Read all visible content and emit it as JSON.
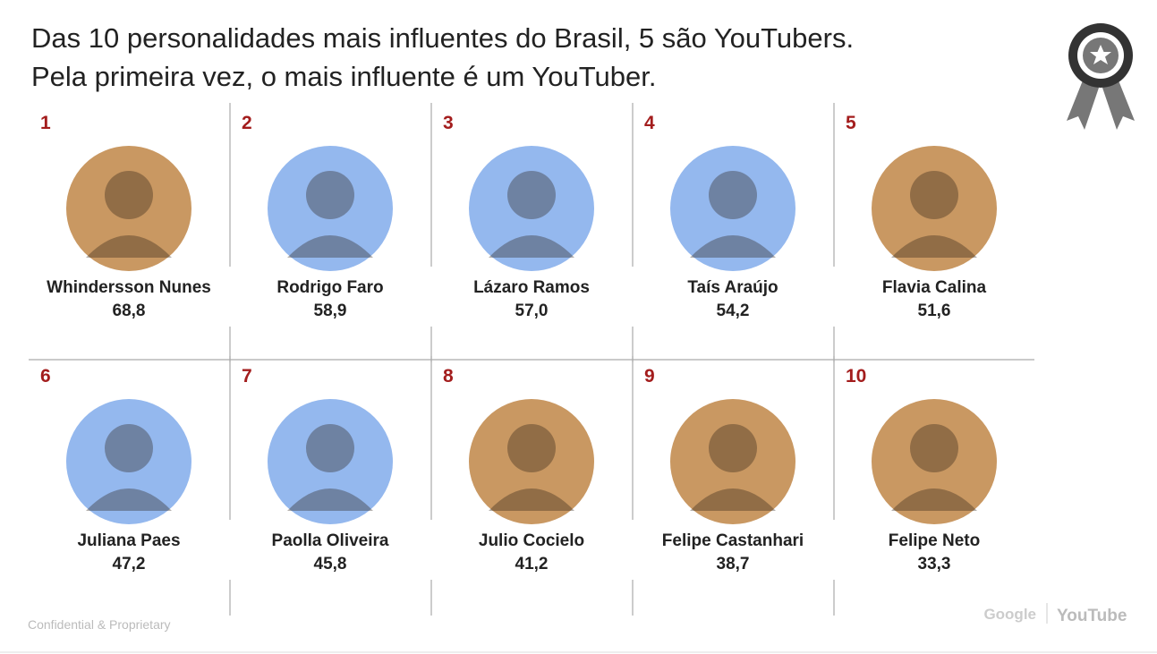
{
  "title_lines": [
    "Das 10 personalidades mais influentes do Brasil, 5 são YouTubers.",
    "Pela primeira vez, o mais influente é um YouTuber."
  ],
  "people": [
    {
      "rank": "1",
      "name": "Whindersson Nunes",
      "score": "68,8",
      "color": "#c99862"
    },
    {
      "rank": "2",
      "name": "Rodrigo Faro",
      "score": "58,9",
      "color": "#94b8ee"
    },
    {
      "rank": "3",
      "name": "Lázaro Ramos",
      "score": "57,0",
      "color": "#94b8ee"
    },
    {
      "rank": "4",
      "name": "Taís Araújo",
      "score": "54,2",
      "color": "#94b8ee"
    },
    {
      "rank": "5",
      "name": "Flavia Calina",
      "score": "51,6",
      "color": "#c99862"
    },
    {
      "rank": "6",
      "name": "Juliana Paes",
      "score": "47,2",
      "color": "#94b8ee"
    },
    {
      "rank": "7",
      "name": "Paolla Oliveira",
      "score": "45,8",
      "color": "#94b8ee"
    },
    {
      "rank": "8",
      "name": "Julio Cocielo",
      "score": "41,2",
      "color": "#c99862"
    },
    {
      "rank": "9",
      "name": "Felipe Castanhari",
      "score": "38,7",
      "color": "#c99862"
    },
    {
      "rank": "10",
      "name": "Felipe Neto",
      "score": "33,3",
      "color": "#c99862"
    }
  ],
  "footer": {
    "confidential": "Confidential & Proprietary",
    "google": "Google",
    "youtube": "YouTube"
  }
}
